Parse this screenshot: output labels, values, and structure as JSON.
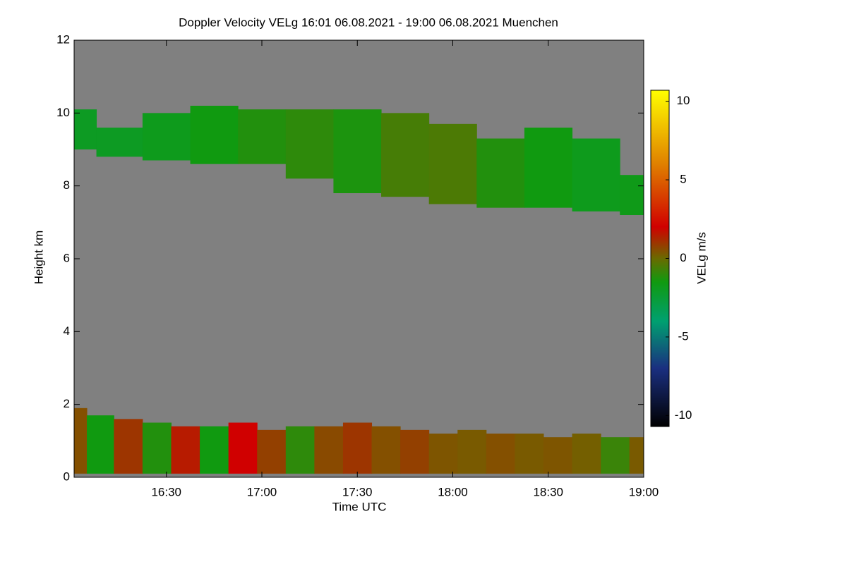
{
  "chart_data": {
    "type": "time-height",
    "title": "Doppler Velocity VELg   16:01 06.08.2021 - 19:00 06.08.2021 Muenchen",
    "x_label": "Time UTC",
    "y_label": "Height km",
    "colorbar_label": "VELg m/s",
    "background": "#808080",
    "xlim": [
      16.0167,
      19.0
    ],
    "xticks": [
      {
        "value": 16.5,
        "label": "16:30"
      },
      {
        "value": 17.0,
        "label": "17:00"
      },
      {
        "value": 17.5,
        "label": "17:30"
      },
      {
        "value": 18.0,
        "label": "18:00"
      },
      {
        "value": 18.5,
        "label": "18:30"
      },
      {
        "value": 19.0,
        "label": "19:00"
      }
    ],
    "ylim": [
      0,
      12
    ],
    "yticks": [
      0,
      2,
      4,
      6,
      8,
      10,
      12
    ],
    "clim": [
      -10.7,
      10.7
    ],
    "cticks": [
      -10,
      -5,
      0,
      5,
      10
    ],
    "colormap": [
      {
        "value": -10.7,
        "color": "#000000"
      },
      {
        "value": -7,
        "color": "#1a2f80"
      },
      {
        "value": -4,
        "color": "#00a070"
      },
      {
        "value": -1.5,
        "color": "#109a10"
      },
      {
        "value": 0,
        "color": "#6a6a00"
      },
      {
        "value": 2,
        "color": "#d00000"
      },
      {
        "value": 6,
        "color": "#e08000"
      },
      {
        "value": 10.7,
        "color": "#ffff00"
      }
    ],
    "layers": [
      {
        "x": [
          16.0167,
          16.25,
          16.5,
          16.75,
          17.0,
          17.25,
          17.5,
          17.75,
          18.0,
          18.25,
          18.5,
          18.75,
          19.0
        ],
        "top": [
          10.1,
          9.6,
          10.0,
          10.2,
          10.1,
          10.1,
          10.1,
          10.0,
          9.7,
          9.3,
          9.6,
          9.3,
          8.3
        ],
        "base": [
          9.0,
          8.8,
          8.7,
          8.6,
          8.6,
          8.2,
          7.8,
          7.7,
          7.5,
          7.4,
          7.4,
          7.3,
          7.2
        ],
        "velocity": [
          -2,
          -2,
          -1.8,
          -1.5,
          -1.2,
          -1,
          -1.3,
          -0.6,
          -0.5,
          -1.2,
          -1.5,
          -1.8,
          -1.7
        ]
      },
      {
        "x": [
          16.0167,
          16.15,
          16.3,
          16.45,
          16.6,
          16.75,
          16.9,
          17.05,
          17.2,
          17.35,
          17.5,
          17.65,
          17.8,
          17.95,
          18.1,
          18.25,
          18.4,
          18.55,
          18.7,
          18.85,
          19.0
        ],
        "top": [
          1.9,
          1.7,
          1.6,
          1.5,
          1.4,
          1.4,
          1.5,
          1.3,
          1.4,
          1.4,
          1.5,
          1.4,
          1.3,
          1.2,
          1.3,
          1.2,
          1.2,
          1.1,
          1.2,
          1.1,
          1.1
        ],
        "base": [
          0.1,
          0.1,
          0.1,
          0.1,
          0.1,
          0.1,
          0.1,
          0.1,
          0.1,
          0.1,
          0.1,
          0.1,
          0.1,
          0.1,
          0.1,
          0.1,
          0.1,
          0.1,
          0.1,
          0.1,
          0.1
        ],
        "velocity": [
          0.5,
          -1.5,
          1,
          -1.2,
          1.5,
          -1.5,
          2,
          0.8,
          -1,
          0.6,
          1,
          0.5,
          0.8,
          0.4,
          0.3,
          0.5,
          0.3,
          0.4,
          0.2,
          -0.8,
          0.3
        ]
      }
    ]
  }
}
